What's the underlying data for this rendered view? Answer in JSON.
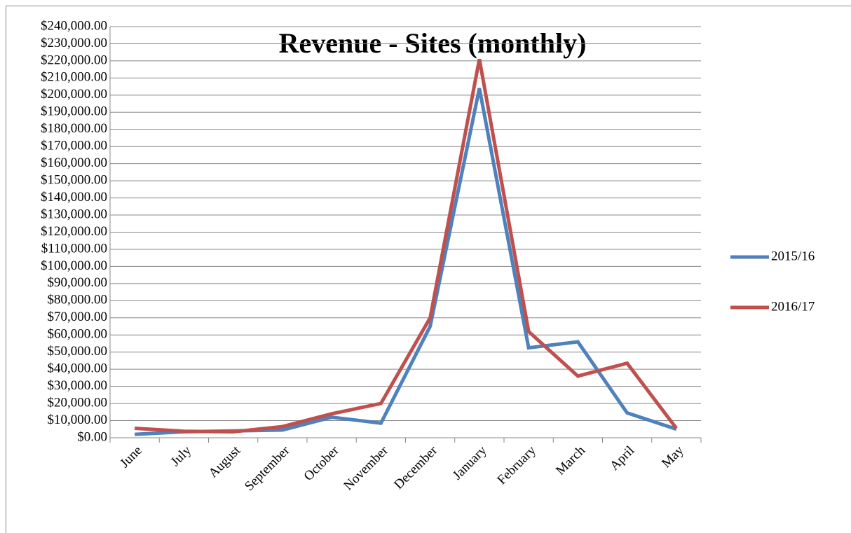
{
  "chart_data": {
    "type": "line",
    "title": "Revenue - Sites (monthly)",
    "categories": [
      "June",
      "July",
      "August",
      "September",
      "October",
      "November",
      "December",
      "January",
      "February",
      "March",
      "April",
      "May"
    ],
    "series": [
      {
        "name": "2015/16",
        "color": "#4f81bd",
        "values": [
          2000,
          3500,
          4000,
          4500,
          12000,
          8500,
          65000,
          204000,
          52500,
          56000,
          14500,
          5000
        ]
      },
      {
        "name": "2016/17",
        "color": "#c0504d",
        "values": [
          5500,
          3800,
          3500,
          6500,
          14000,
          20000,
          70000,
          221000,
          62000,
          36000,
          43500,
          5500
        ]
      }
    ],
    "ylim": [
      0,
      240000
    ],
    "yticks": [
      {
        "value": 0,
        "label": "$0.00"
      },
      {
        "value": 10000,
        "label": "$10,000.00"
      },
      {
        "value": 20000,
        "label": "$20,000.00"
      },
      {
        "value": 30000,
        "label": "$30,000.00"
      },
      {
        "value": 40000,
        "label": "$40,000.00"
      },
      {
        "value": 50000,
        "label": "$50,000.00"
      },
      {
        "value": 60000,
        "label": "$60,000.00"
      },
      {
        "value": 70000,
        "label": "$70,000.00"
      },
      {
        "value": 80000,
        "label": "$80,000.00"
      },
      {
        "value": 90000,
        "label": "$90,000.00"
      },
      {
        "value": 100000,
        "label": "$100,000.00"
      },
      {
        "value": 110000,
        "label": "$110,000.00"
      },
      {
        "value": 120000,
        "label": "$120,000.00"
      },
      {
        "value": 130000,
        "label": "$130,000.00"
      },
      {
        "value": 140000,
        "label": "$140,000.00"
      },
      {
        "value": 150000,
        "label": "$150,000.00"
      },
      {
        "value": 160000,
        "label": "$160,000.00"
      },
      {
        "value": 170000,
        "label": "$170,000.00"
      },
      {
        "value": 180000,
        "label": "$180,000.00"
      },
      {
        "value": 190000,
        "label": "$190,000.00"
      },
      {
        "value": 200000,
        "label": "$200,000.00"
      },
      {
        "value": 210000,
        "label": "$210,000.00"
      },
      {
        "value": 220000,
        "label": "$220,000.00"
      },
      {
        "value": 230000,
        "label": "$230,000.00"
      },
      {
        "value": 240000,
        "label": "$240,000.00"
      }
    ],
    "grid": true,
    "legend": "right"
  }
}
